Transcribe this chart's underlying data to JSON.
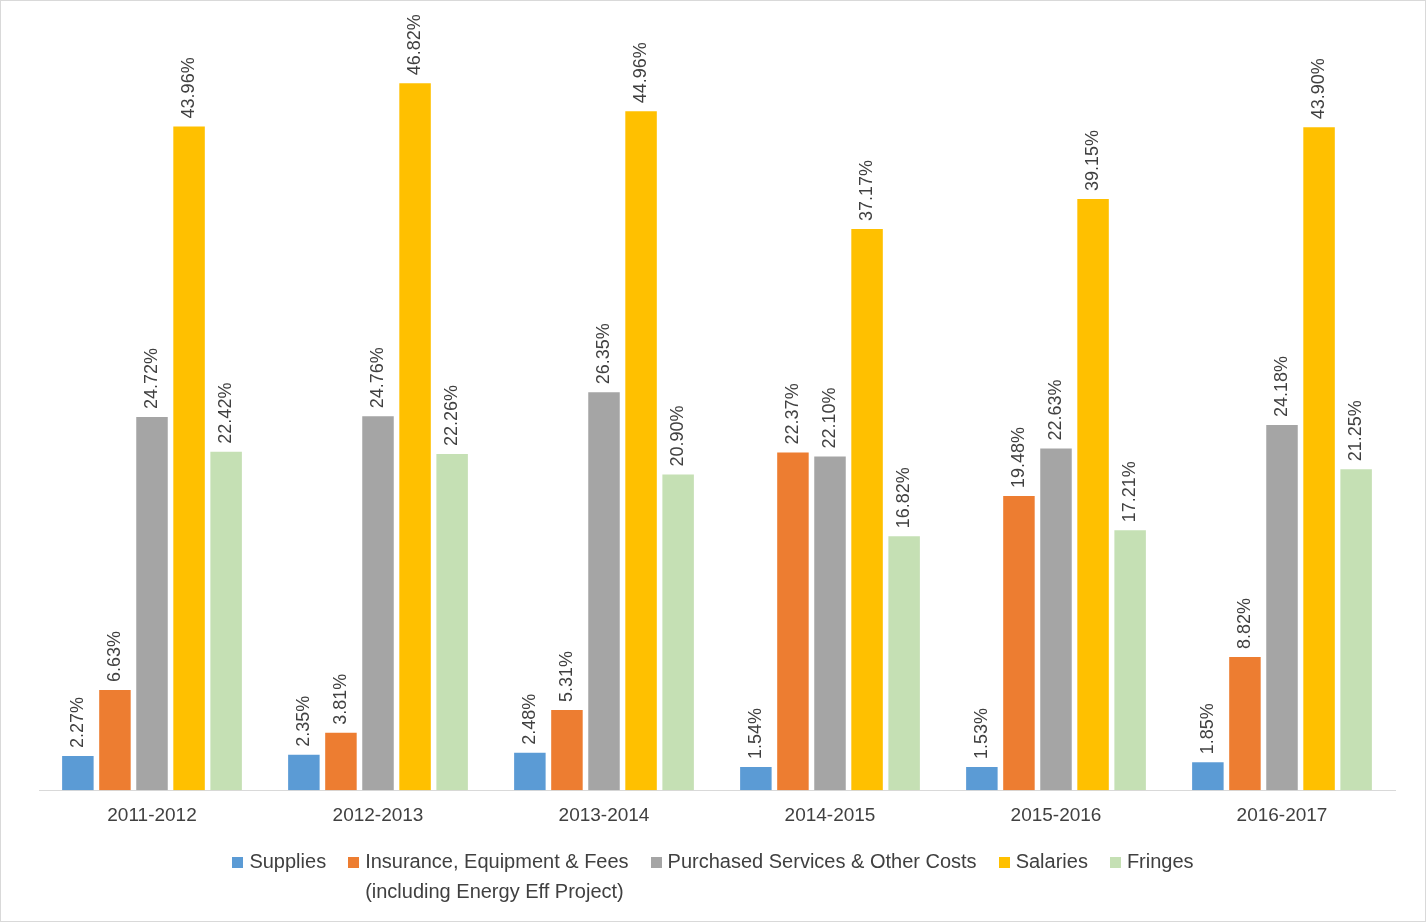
{
  "chart_data": {
    "type": "bar",
    "categories": [
      "2011-2012",
      "2012-2013",
      "2013-2014",
      "2014-2015",
      "2015-2016",
      "2016-2017"
    ],
    "series": [
      {
        "name": "Supplies",
        "color": "#5b9bd5",
        "values": [
          2.27,
          2.35,
          2.48,
          1.54,
          1.53,
          1.85
        ],
        "value_labels": [
          "2.27%",
          "2.35%",
          "2.48%",
          "1.54%",
          "1.53%",
          "1.85%"
        ]
      },
      {
        "name": "Insurance, Equipment & Fees\n(including Energy Eff Project)",
        "color": "#ed7d31",
        "values": [
          6.63,
          3.81,
          5.31,
          22.37,
          19.48,
          8.82
        ],
        "value_labels": [
          "6.63%",
          "3.81%",
          "5.31%",
          "22.37%",
          "19.48%",
          "8.82%"
        ]
      },
      {
        "name": "Purchased Services & Other Costs",
        "color": "#a5a5a5",
        "values": [
          24.72,
          24.76,
          26.35,
          22.1,
          22.63,
          24.18
        ],
        "value_labels": [
          "24.72%",
          "24.76%",
          "26.35%",
          "22.10%",
          "22.63%",
          "24.18%"
        ]
      },
      {
        "name": "Salaries",
        "color": "#ffc000",
        "values": [
          43.96,
          46.82,
          44.96,
          37.17,
          39.15,
          43.9
        ],
        "value_labels": [
          "43.96%",
          "46.82%",
          "44.96%",
          "37.17%",
          "39.15%",
          "43.90%"
        ]
      },
      {
        "name": "Fringes",
        "color": "#c5e0b4",
        "values": [
          22.42,
          22.26,
          20.9,
          16.82,
          17.21,
          21.25
        ],
        "value_labels": [
          "22.42%",
          "22.26%",
          "20.90%",
          "16.82%",
          "17.21%",
          "21.25%"
        ]
      }
    ],
    "legend": "bottom",
    "grid": false
  }
}
